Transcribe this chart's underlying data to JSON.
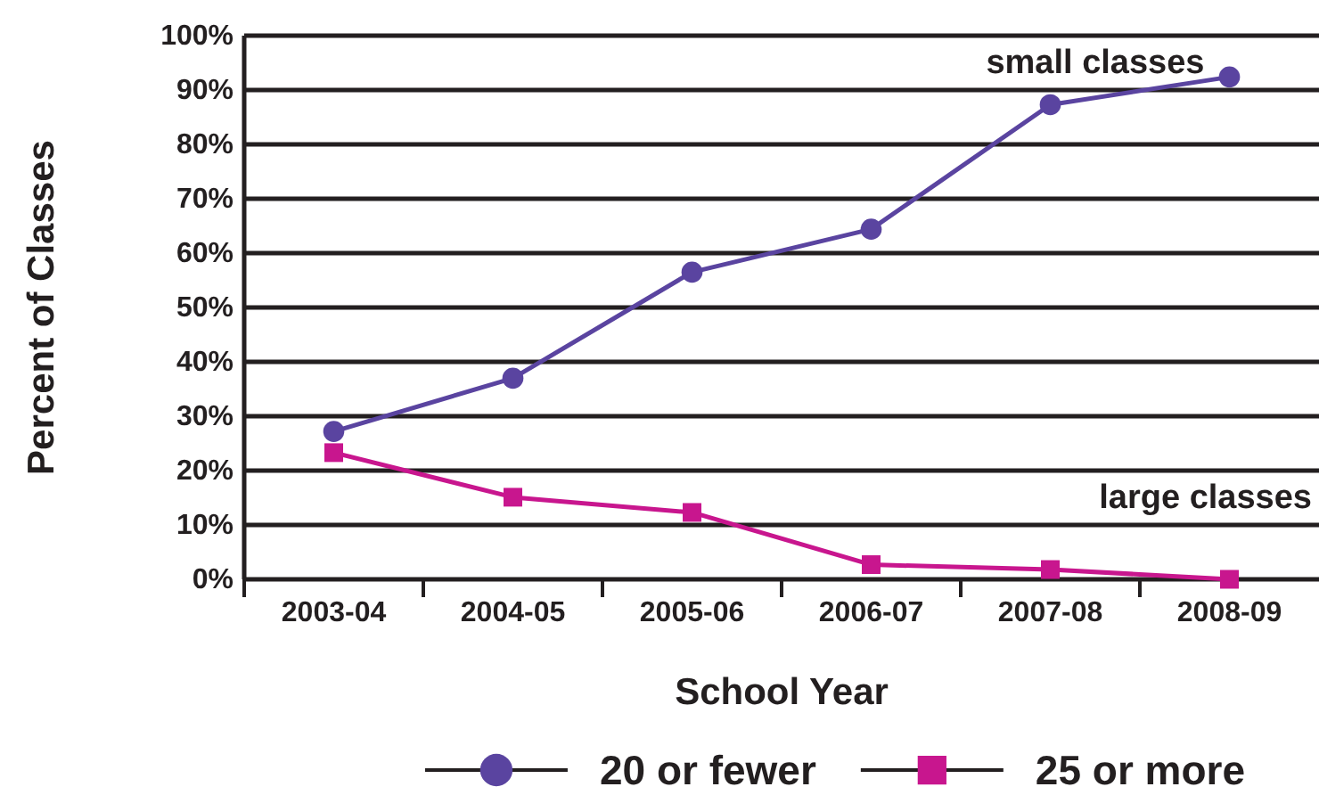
{
  "chart_data": {
    "type": "line",
    "xlabel": "School Year",
    "ylabel": "Percent of Classes",
    "categories": [
      "2003-04",
      "2004-05",
      "2005-06",
      "2006-07",
      "2007-08",
      "2008-09"
    ],
    "series": [
      {
        "name": "20 or fewer",
        "color": "#5a44a0",
        "marker": "circle",
        "values": [
          27.2,
          37,
          56.5,
          64.4,
          87.3,
          92.4
        ]
      },
      {
        "name": "25 or more",
        "color": "#c8168e",
        "marker": "square",
        "values": [
          23.3,
          15.1,
          12.3,
          2.7,
          1.8,
          0
        ]
      }
    ],
    "ylim": [
      0,
      100
    ],
    "yticks": [
      {
        "value": 0,
        "label": "0%"
      },
      {
        "value": 10,
        "label": "10%"
      },
      {
        "value": 20,
        "label": "20%"
      },
      {
        "value": 30,
        "label": "30%"
      },
      {
        "value": 40,
        "label": "40%"
      },
      {
        "value": 50,
        "label": "50%"
      },
      {
        "value": 60,
        "label": "60%"
      },
      {
        "value": 70,
        "label": "70%"
      },
      {
        "value": 80,
        "label": "80%"
      },
      {
        "value": 90,
        "label": "90%"
      },
      {
        "value": 100,
        "label": "100%"
      }
    ],
    "grid": "y",
    "legend": "bottom",
    "line_style": "solid",
    "annotations": [
      "small classes",
      "large classes"
    ]
  }
}
